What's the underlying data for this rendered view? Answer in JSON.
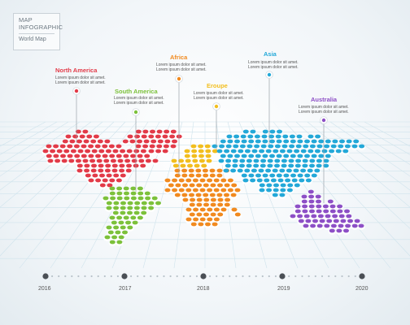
{
  "header": {
    "title_line1": "MAP",
    "title_line2": "INFOGRAPHIC",
    "subtitle": "World Map"
  },
  "regions": [
    {
      "id": "north-america",
      "name": "North America",
      "color": "#e23a48",
      "text": [
        "Lorem ipsum dolor sit amet.",
        "Lorem ipsum dolor sit amet."
      ]
    },
    {
      "id": "south-america",
      "name": "South America",
      "color": "#7cc13a",
      "text": [
        "Lorem ipsum dolor sit amet.",
        "Lorem ipsum dolor sit amet."
      ]
    },
    {
      "id": "africa",
      "name": "Africa",
      "color": "#f18a1f",
      "text": [
        "Lorem ipsum dolor sit amet.",
        "Lorem ipsum dolor sit amet."
      ]
    },
    {
      "id": "europe",
      "name": "Eroupe",
      "color": "#f2be1e",
      "text": [
        "Lorem ipsum dolor sit amet.",
        "Lorem ipsum dolor sit amet."
      ]
    },
    {
      "id": "asia",
      "name": "Asia",
      "color": "#23a8d8",
      "text": [
        "Lorem ipsum dolor sit amet.",
        "Lorem ipsum dolor sit amet."
      ]
    },
    {
      "id": "australia",
      "name": "Australia",
      "color": "#8d4fc6",
      "text": [
        "Lorem ipsum dolor sit amet.",
        "Lorem ipsum dolor sit amet."
      ]
    }
  ],
  "timeline": {
    "years": [
      "2016",
      "2017",
      "2018",
      "2019",
      "2020"
    ],
    "line_color": "#b9c3ca",
    "marker_color": "#4a4f55"
  }
}
